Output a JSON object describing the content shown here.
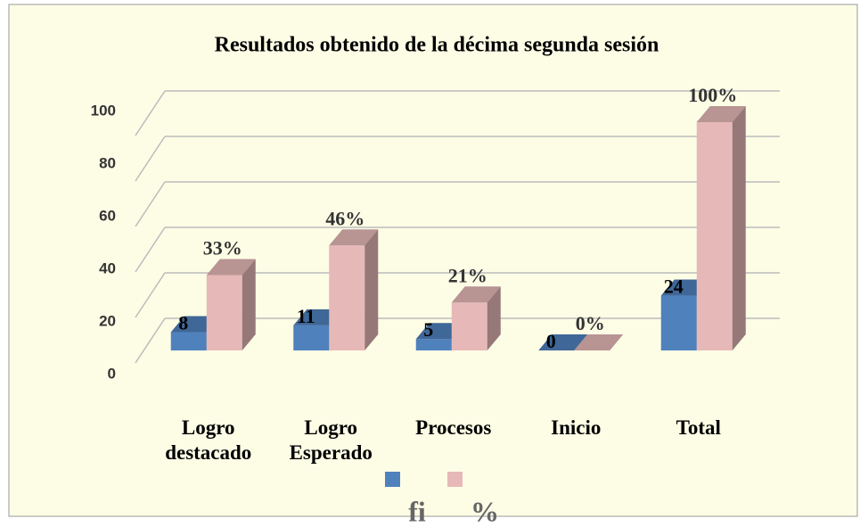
{
  "chart_data": {
    "type": "bar",
    "title": "Resultados obtenido de la décima segunda  sesión",
    "categories": [
      "Logro destacado",
      "Logro Esperado",
      "Procesos",
      "Inicio",
      "Total"
    ],
    "series": [
      {
        "name": "fi",
        "color": "#4f81bd",
        "values": [
          8,
          11,
          5,
          0,
          24
        ]
      },
      {
        "name": "%",
        "color": "#e6b9b8",
        "values": [
          33,
          46,
          21,
          0,
          100
        ],
        "value_labels": [
          "33%",
          "46%",
          "21%",
          "0%",
          "100%"
        ]
      }
    ],
    "ylim": [
      0,
      100
    ],
    "yticks": [
      0,
      20,
      40,
      60,
      80,
      100
    ],
    "grid": true,
    "legend": "bottom"
  }
}
